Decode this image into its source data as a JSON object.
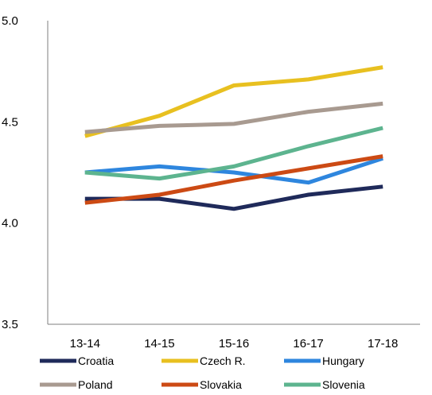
{
  "chart_data": {
    "type": "line",
    "title": "",
    "xlabel": "",
    "ylabel": "",
    "categories": [
      "13-14",
      "14-15",
      "15-16",
      "16-17",
      "17-18"
    ],
    "ylim": [
      3.5,
      5.0
    ],
    "y_ticks": [
      "3.5",
      "4.0",
      "4.5",
      "5.0"
    ],
    "y_tick_values": [
      3.5,
      4.0,
      4.5,
      5.0
    ],
    "grid": false,
    "legend_position": "bottom",
    "series": [
      {
        "name": "Croatia",
        "color": "#1f2a5a",
        "values": [
          4.12,
          4.12,
          4.07,
          4.14,
          4.18
        ]
      },
      {
        "name": "Czech R.",
        "color": "#e8c020",
        "values": [
          4.43,
          4.53,
          4.68,
          4.71,
          4.77
        ]
      },
      {
        "name": "Hungary",
        "color": "#2e86de",
        "values": [
          4.25,
          4.28,
          4.25,
          4.2,
          4.32
        ]
      },
      {
        "name": "Poland",
        "color": "#a89a90",
        "values": [
          4.45,
          4.48,
          4.49,
          4.55,
          4.59
        ]
      },
      {
        "name": "Slovakia",
        "color": "#cc4a14",
        "values": [
          4.1,
          4.14,
          4.21,
          4.27,
          4.33
        ]
      },
      {
        "name": "Slovenia",
        "color": "#5db48f",
        "values": [
          4.25,
          4.22,
          4.28,
          4.38,
          4.47
        ]
      }
    ]
  }
}
